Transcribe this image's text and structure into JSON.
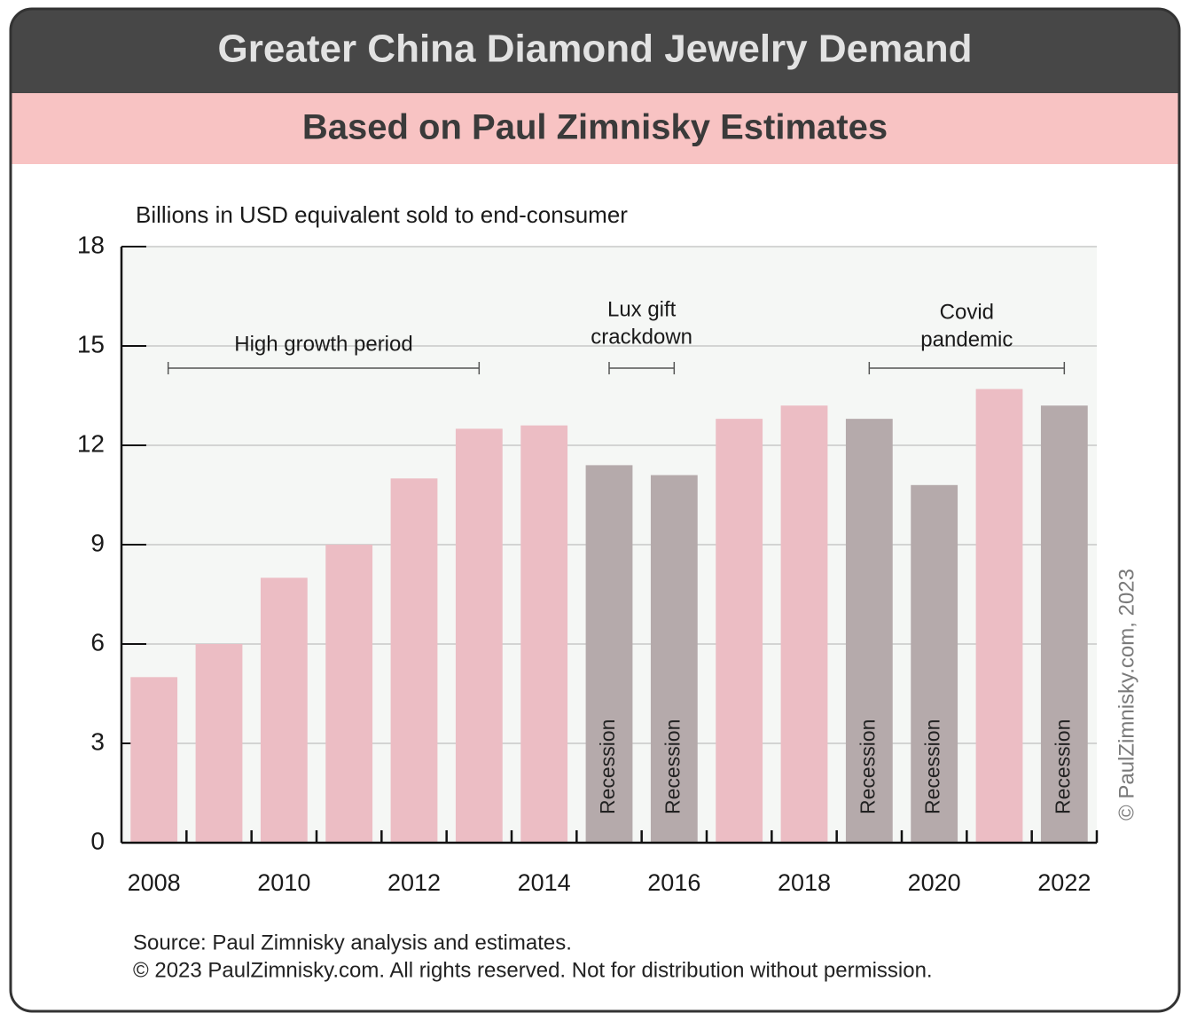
{
  "chart_data": {
    "type": "bar",
    "title": "Greater China Diamond Jewelry Demand",
    "subtitle": "Based on Paul Zimnisky Estimates",
    "y_label": "Billions in USD equivalent sold to end-consumer",
    "categories": [
      "2008",
      null,
      "2010",
      null,
      "2012",
      null,
      "2014",
      null,
      "2016",
      null,
      "2018",
      null,
      "2020",
      null,
      "2022"
    ],
    "values": [
      5.0,
      6.0,
      8.0,
      9.0,
      11.0,
      12.5,
      12.6,
      11.4,
      11.1,
      12.8,
      13.2,
      12.8,
      10.8,
      13.7,
      13.2
    ],
    "colors": [
      "#ecbdc4",
      "#ecbdc4",
      "#ecbdc4",
      "#ecbdc4",
      "#ecbdc4",
      "#ecbdc4",
      "#ecbdc4",
      "#b5aaab",
      "#b5aaab",
      "#ecbdc4",
      "#ecbdc4",
      "#b5aaab",
      "#b5aaab",
      "#ecbdc4",
      "#b5aaab"
    ],
    "bar_labels": [
      null,
      null,
      null,
      null,
      null,
      null,
      null,
      "Recession",
      "Recession",
      null,
      null,
      "Recession",
      "Recession",
      null,
      "Recession"
    ],
    "annotations": [
      {
        "text": [
          "High growth period"
        ]
      },
      {
        "text": [
          "Lux gift",
          "crackdown"
        ]
      },
      {
        "text": [
          "Covid",
          "pandemic"
        ]
      }
    ],
    "ylim": [
      0,
      18
    ],
    "yticks": [
      0,
      3,
      6,
      9,
      12,
      15,
      18
    ],
    "grid": true,
    "source": [
      "Source: Paul Zimnisky analysis and estimates.",
      "© 2023 PaulZimnisky.com. All rights reserved. Not for distribution without permission."
    ],
    "watermark": "© PaulZimnisky.com, 2023"
  }
}
